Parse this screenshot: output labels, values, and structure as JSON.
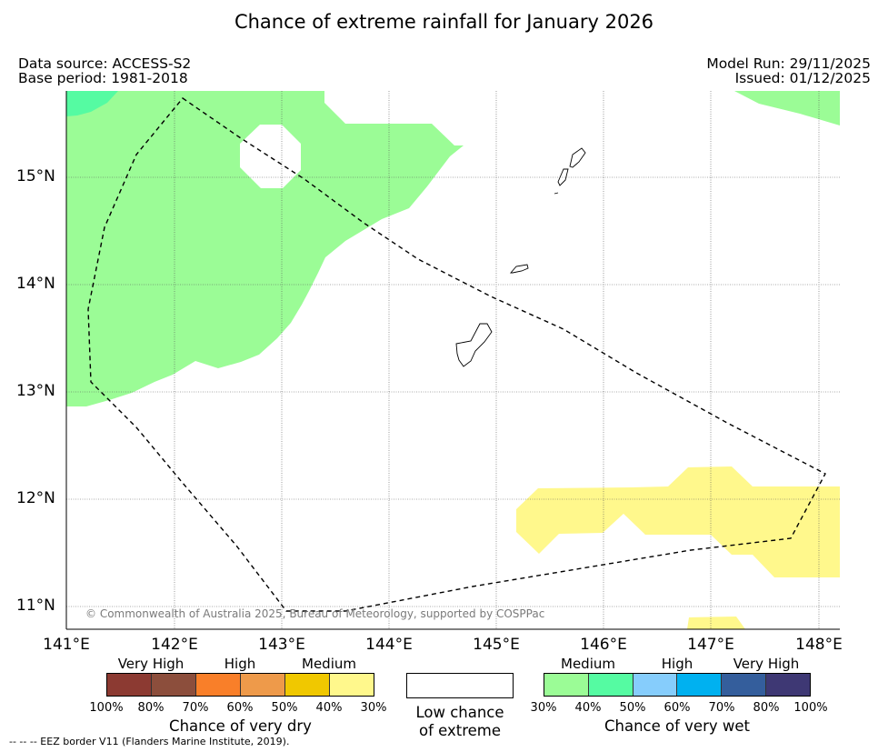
{
  "title": "Chance of extreme rainfall for January 2026",
  "meta": {
    "data_source": "Data source: ACCESS-S2",
    "base_period": "Base period: 1981-2018",
    "model_run": "Model Run: 29/11/2025",
    "issued": "Issued: 01/12/2025"
  },
  "axes": {
    "x_ticks": [
      "141°E",
      "142°E",
      "143°E",
      "144°E",
      "145°E",
      "146°E",
      "147°E",
      "148°E"
    ],
    "y_ticks": [
      "15°N",
      "14°N",
      "13°N",
      "12°N",
      "11°N"
    ]
  },
  "copyright": "© Commonwealth of Australia 2025, Bureau of Meteorology, supported by COSPPac",
  "legend_dry": {
    "categories": [
      "Very High",
      "High",
      "Medium"
    ],
    "colors": [
      "#8c3a32",
      "#8c4e3c",
      "#f97f29",
      "#ee9a4a",
      "#f0c800",
      "#fff88c"
    ],
    "percentages": [
      "100%",
      "80%",
      "70%",
      "60%",
      "50%",
      "40%",
      "30%"
    ],
    "title": "Chance of very dry"
  },
  "legend_low": {
    "label_line1": "Low chance",
    "label_line2": "of extreme"
  },
  "legend_wet": {
    "categories": [
      "Medium",
      "High",
      "Very High"
    ],
    "colors": [
      "#9bfc96",
      "#55fba2",
      "#86cdfc",
      "#00b1f0",
      "#345e9c",
      "#3e3874"
    ],
    "percentages": [
      "30%",
      "40%",
      "50%",
      "60%",
      "70%",
      "80%",
      "100%"
    ],
    "title": "Chance of very wet"
  },
  "footnote": "--  --  -- EEZ border V11 (Flanders Marine Institute, 2019)."
}
